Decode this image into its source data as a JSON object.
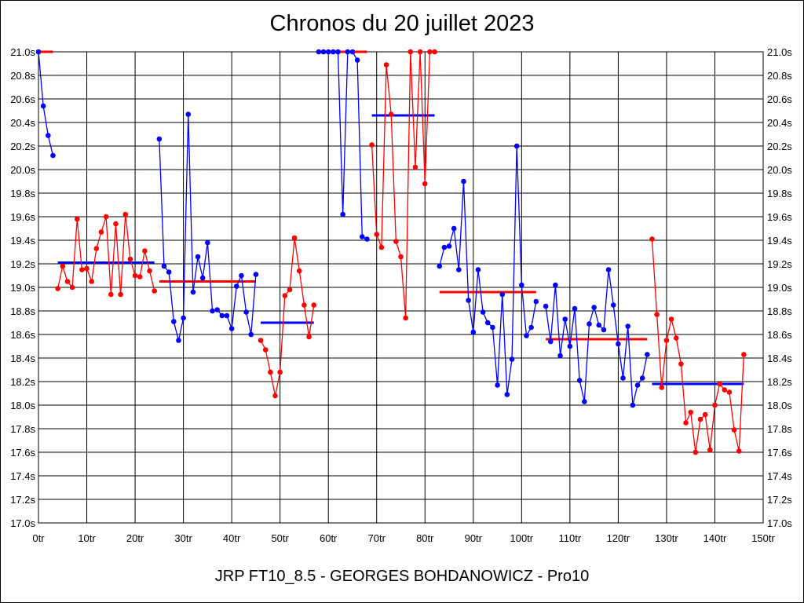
{
  "chart_data": {
    "type": "line",
    "title": "Chronos du 20 juillet 2023",
    "subtitle": "JRP FT10_8.5 - GEORGES BOHDANOWICZ - Pro10",
    "xlabel": "",
    "ylabel": "",
    "xlim": [
      0,
      150
    ],
    "ylim": [
      17.0,
      21.0
    ],
    "grid": true,
    "x_ticks": [
      "0tr",
      "10tr",
      "20tr",
      "30tr",
      "40tr",
      "50tr",
      "60tr",
      "70tr",
      "80tr",
      "90tr",
      "100tr",
      "110tr",
      "120tr",
      "130tr",
      "140tr",
      "150tr"
    ],
    "y_ticks": [
      "17.0s",
      "17.2s",
      "17.4s",
      "17.6s",
      "17.8s",
      "18.0s",
      "18.2s",
      "18.4s",
      "18.6s",
      "18.8s",
      "19.0s",
      "19.2s",
      "19.4s",
      "19.6s",
      "19.8s",
      "20.0s",
      "20.2s",
      "20.4s",
      "20.6s",
      "20.8s",
      "21.0s"
    ],
    "colors": {
      "blue": "#0000ff",
      "red": "#ff0000"
    },
    "segments": [
      {
        "color": "blue",
        "x_start": 0,
        "values": [
          21.0,
          20.54,
          20.29,
          20.12
        ],
        "average": 21.0
      },
      {
        "color": "red",
        "x_start": 4,
        "values": [
          18.99,
          19.18,
          19.05,
          19.0,
          19.58,
          19.15,
          19.16,
          19.05,
          19.33,
          19.47,
          19.6,
          18.94,
          19.54,
          18.94,
          19.62,
          19.24,
          19.1,
          19.09,
          19.31,
          19.14,
          18.97
        ],
        "average": 19.21
      },
      {
        "color": "blue",
        "x_start": 25,
        "values": [
          20.26,
          19.18,
          19.13,
          18.71,
          18.55,
          18.74,
          20.47,
          18.96,
          19.26,
          19.08,
          19.38,
          18.8,
          18.81,
          18.76,
          18.76,
          18.65,
          19.01,
          19.1,
          18.79,
          18.6,
          19.11
        ],
        "average": 19.05
      },
      {
        "color": "red",
        "x_start": 46,
        "values": [
          18.55,
          18.47,
          18.28,
          18.08,
          18.28,
          18.93,
          18.98,
          19.42,
          19.14,
          18.85,
          18.58,
          18.85
        ],
        "average": 18.7
      },
      {
        "color": "blue",
        "x_start": 58,
        "values": [
          21.0,
          21.0,
          21.0,
          21.0,
          21.0,
          19.62,
          21.0,
          21.0,
          20.93,
          19.43,
          19.41
        ],
        "average": 21.0
      },
      {
        "color": "red",
        "x_start": 69,
        "values": [
          20.21,
          19.45,
          19.34,
          20.89,
          20.47,
          19.39,
          19.26,
          18.74,
          21.0,
          20.02,
          21.0,
          19.88,
          21.0,
          21.0
        ],
        "average": 20.46
      },
      {
        "color": "blue",
        "x_start": 83,
        "values": [
          19.18,
          19.34,
          19.35,
          19.5,
          19.15,
          19.9,
          18.89,
          18.62,
          19.15,
          18.79,
          18.7,
          18.66,
          18.17,
          18.94,
          18.09,
          18.39,
          20.2,
          19.02,
          18.59,
          18.66,
          18.88
        ],
        "average": 18.96
      },
      {
        "color": "blue",
        "x_start": 105,
        "values": [
          18.84,
          18.54,
          19.02,
          18.42,
          18.73,
          18.5,
          18.82,
          18.21,
          18.03,
          18.69,
          18.83,
          18.68,
          18.64,
          19.15,
          18.85,
          18.52,
          18.23,
          18.67,
          18.0,
          18.17,
          18.23,
          18.43
        ],
        "average": 18.56
      },
      {
        "color": "red",
        "x_start": 127,
        "values": [
          19.41,
          18.77,
          18.15,
          18.55,
          18.73,
          18.57,
          18.35,
          17.85,
          17.94,
          17.6,
          17.88,
          17.92,
          17.62,
          18.0,
          18.18,
          18.13,
          18.11,
          17.79,
          17.61,
          18.43
        ],
        "average": 18.18
      }
    ]
  }
}
